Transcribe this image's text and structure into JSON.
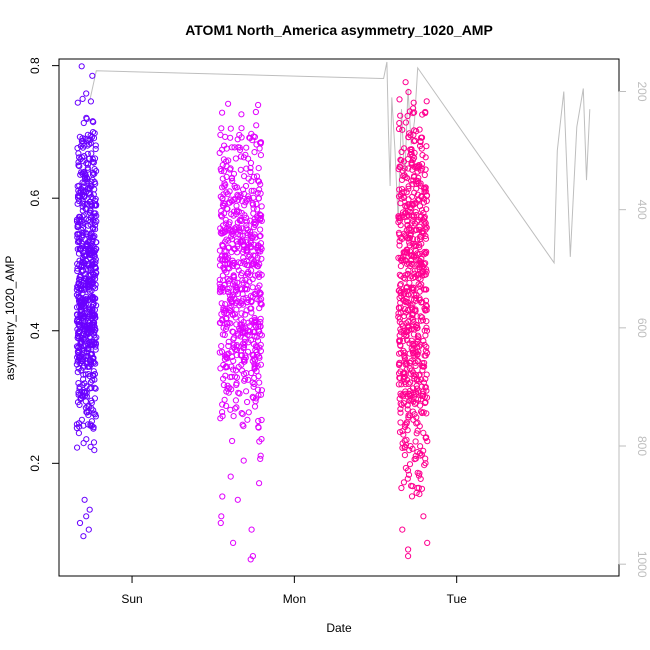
{
  "chart_data": {
    "type": "scatter",
    "title": "ATOM1 North_America asymmetry_1020_AMP",
    "xlabel": "Date",
    "ylabel": "asymmetry_1020_AMP",
    "x_unit": "days",
    "xlim": [
      -0.45,
      3.0
    ],
    "ylim": [
      0.03,
      0.81
    ],
    "y2lim": [
      1020,
      145
    ],
    "x_ticks": [
      {
        "value": 0,
        "label": "Sun"
      },
      {
        "value": 1,
        "label": "Mon"
      },
      {
        "value": 2,
        "label": "Tue"
      }
    ],
    "y_ticks": [
      0.2,
      0.4,
      0.6,
      0.8
    ],
    "y2_ticks": [
      200,
      400,
      600,
      800,
      1000
    ],
    "grid": false,
    "legend": "none",
    "series": [
      {
        "color": "#6A00FF",
        "x_range": [
          -0.34,
          -0.22
        ],
        "y_density": [
          [
            0.2,
            0.05
          ],
          [
            0.25,
            0.2
          ],
          [
            0.3,
            0.5
          ],
          [
            0.35,
            1.0
          ],
          [
            0.4,
            1.0
          ],
          [
            0.45,
            0.9
          ],
          [
            0.5,
            0.8
          ],
          [
            0.55,
            0.6
          ],
          [
            0.6,
            0.5
          ],
          [
            0.65,
            0.4
          ],
          [
            0.7,
            0.15
          ],
          [
            0.76,
            0.05
          ]
        ],
        "outliers": [
          0.09,
          0.1,
          0.11,
          0.12,
          0.13,
          0.145,
          0.22,
          0.225
        ]
      },
      {
        "color": "#E000FF",
        "x_range": [
          0.54,
          0.8
        ],
        "y_density": [
          [
            0.2,
            0.1
          ],
          [
            0.25,
            0.3
          ],
          [
            0.3,
            0.6
          ],
          [
            0.35,
            0.9
          ],
          [
            0.4,
            1.0
          ],
          [
            0.45,
            1.0
          ],
          [
            0.5,
            1.0
          ],
          [
            0.55,
            0.9
          ],
          [
            0.6,
            0.6
          ],
          [
            0.65,
            0.35
          ],
          [
            0.7,
            0.1
          ]
        ],
        "outliers": [
          0.055,
          0.06,
          0.08,
          0.1,
          0.11,
          0.12,
          0.145,
          0.15,
          0.17,
          0.18,
          0.73
        ]
      },
      {
        "color": "#FF0090",
        "x_range": [
          1.64,
          1.82
        ],
        "y_density": [
          [
            0.15,
            0.2
          ],
          [
            0.2,
            0.4
          ],
          [
            0.25,
            0.6
          ],
          [
            0.3,
            0.8
          ],
          [
            0.35,
            0.9
          ],
          [
            0.4,
            1.0
          ],
          [
            0.45,
            1.0
          ],
          [
            0.5,
            1.0
          ],
          [
            0.55,
            0.9
          ],
          [
            0.6,
            0.7
          ],
          [
            0.65,
            0.4
          ],
          [
            0.7,
            0.2
          ]
        ],
        "outliers": [
          0.06,
          0.07,
          0.08,
          0.1,
          0.12,
          0.73,
          0.76,
          0.775
        ]
      }
    ],
    "reference_line": {
      "color": "#BEBEBE",
      "axis": "y2",
      "points": [
        [
          -0.26,
          215
        ],
        [
          -0.22,
          165
        ],
        [
          1.55,
          178
        ],
        [
          1.57,
          150
        ],
        [
          1.58,
          270
        ],
        [
          1.59,
          360
        ],
        [
          1.6,
          210
        ],
        [
          1.62,
          300
        ],
        [
          1.64,
          420
        ],
        [
          1.66,
          230
        ],
        [
          1.68,
          350
        ],
        [
          1.7,
          195
        ],
        [
          1.72,
          290
        ],
        [
          1.74,
          250
        ],
        [
          1.76,
          160
        ],
        [
          2.6,
          490
        ],
        [
          2.62,
          300
        ],
        [
          2.66,
          200
        ],
        [
          2.7,
          480
        ],
        [
          2.74,
          260
        ],
        [
          2.78,
          195
        ],
        [
          2.8,
          350
        ],
        [
          2.82,
          230
        ]
      ]
    }
  }
}
